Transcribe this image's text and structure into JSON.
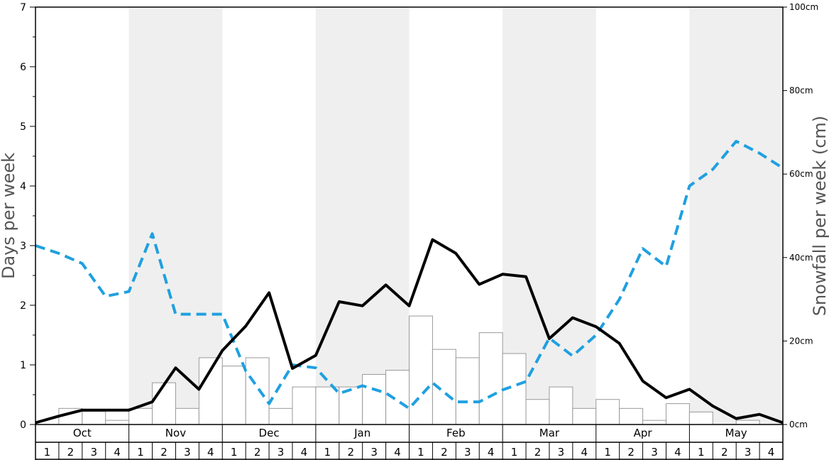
{
  "chart_data": {
    "type": "bar-line",
    "left_axis": {
      "label": "Days per week",
      "ylim": [
        0,
        7
      ],
      "ticks": [
        "0",
        "1",
        "2",
        "3",
        "4",
        "5",
        "6",
        "7"
      ]
    },
    "right_axis": {
      "label": "Snowfall per week (cm)",
      "ylim": [
        0,
        100
      ],
      "ticks": [
        "0cm",
        "20cm",
        "40cm",
        "60cm",
        "80cm",
        "100cm"
      ]
    },
    "months": [
      "Oct",
      "Nov",
      "Dec",
      "Jan",
      "Feb",
      "Mar",
      "Apr",
      "May"
    ],
    "weeks": [
      "1",
      "2",
      "3",
      "4"
    ],
    "shaded_months": [
      "Nov",
      "Jan",
      "Mar",
      "May"
    ],
    "colors": {
      "bars_fill": "#ffffff",
      "bars_stroke": "#999999",
      "black_line": "#000000",
      "dashed_line": "#1fa0e0",
      "shade": "#efefef"
    },
    "bars_days": [
      0,
      0.27,
      0.22,
      0.07,
      0.27,
      0.7,
      0.27,
      1.12,
      0.98,
      1.12,
      0.27,
      0.63,
      0.63,
      0.63,
      0.84,
      0.91,
      1.82,
      1.26,
      1.12,
      1.54,
      1.19,
      0.42,
      0.63,
      0.27,
      0.42,
      0.27,
      0.07,
      0.35,
      0.21,
      0,
      0.07,
      0
    ],
    "black_line_days": [
      0.03,
      0.14,
      0.24,
      0.24,
      0.24,
      0.38,
      0.95,
      0.59,
      1.24,
      1.65,
      2.21,
      0.94,
      1.16,
      2.06,
      1.99,
      2.34,
      1.99,
      3.1,
      2.87,
      2.35,
      2.52,
      2.48,
      1.44,
      1.79,
      1.64,
      1.36,
      0.73,
      0.45,
      0.59,
      0.31,
      0.1,
      0.17,
      0.03
    ],
    "dashed_line_days": [
      3.0,
      2.87,
      2.7,
      2.15,
      2.23,
      3.2,
      1.85,
      1.85,
      1.85,
      0.9,
      0.35,
      1.0,
      0.95,
      0.52,
      0.65,
      0.53,
      0.27,
      0.7,
      0.38,
      0.38,
      0.58,
      0.72,
      1.45,
      1.15,
      1.5,
      2.1,
      2.95,
      2.65,
      4.0,
      4.28,
      4.75,
      4.55,
      4.3
    ]
  }
}
